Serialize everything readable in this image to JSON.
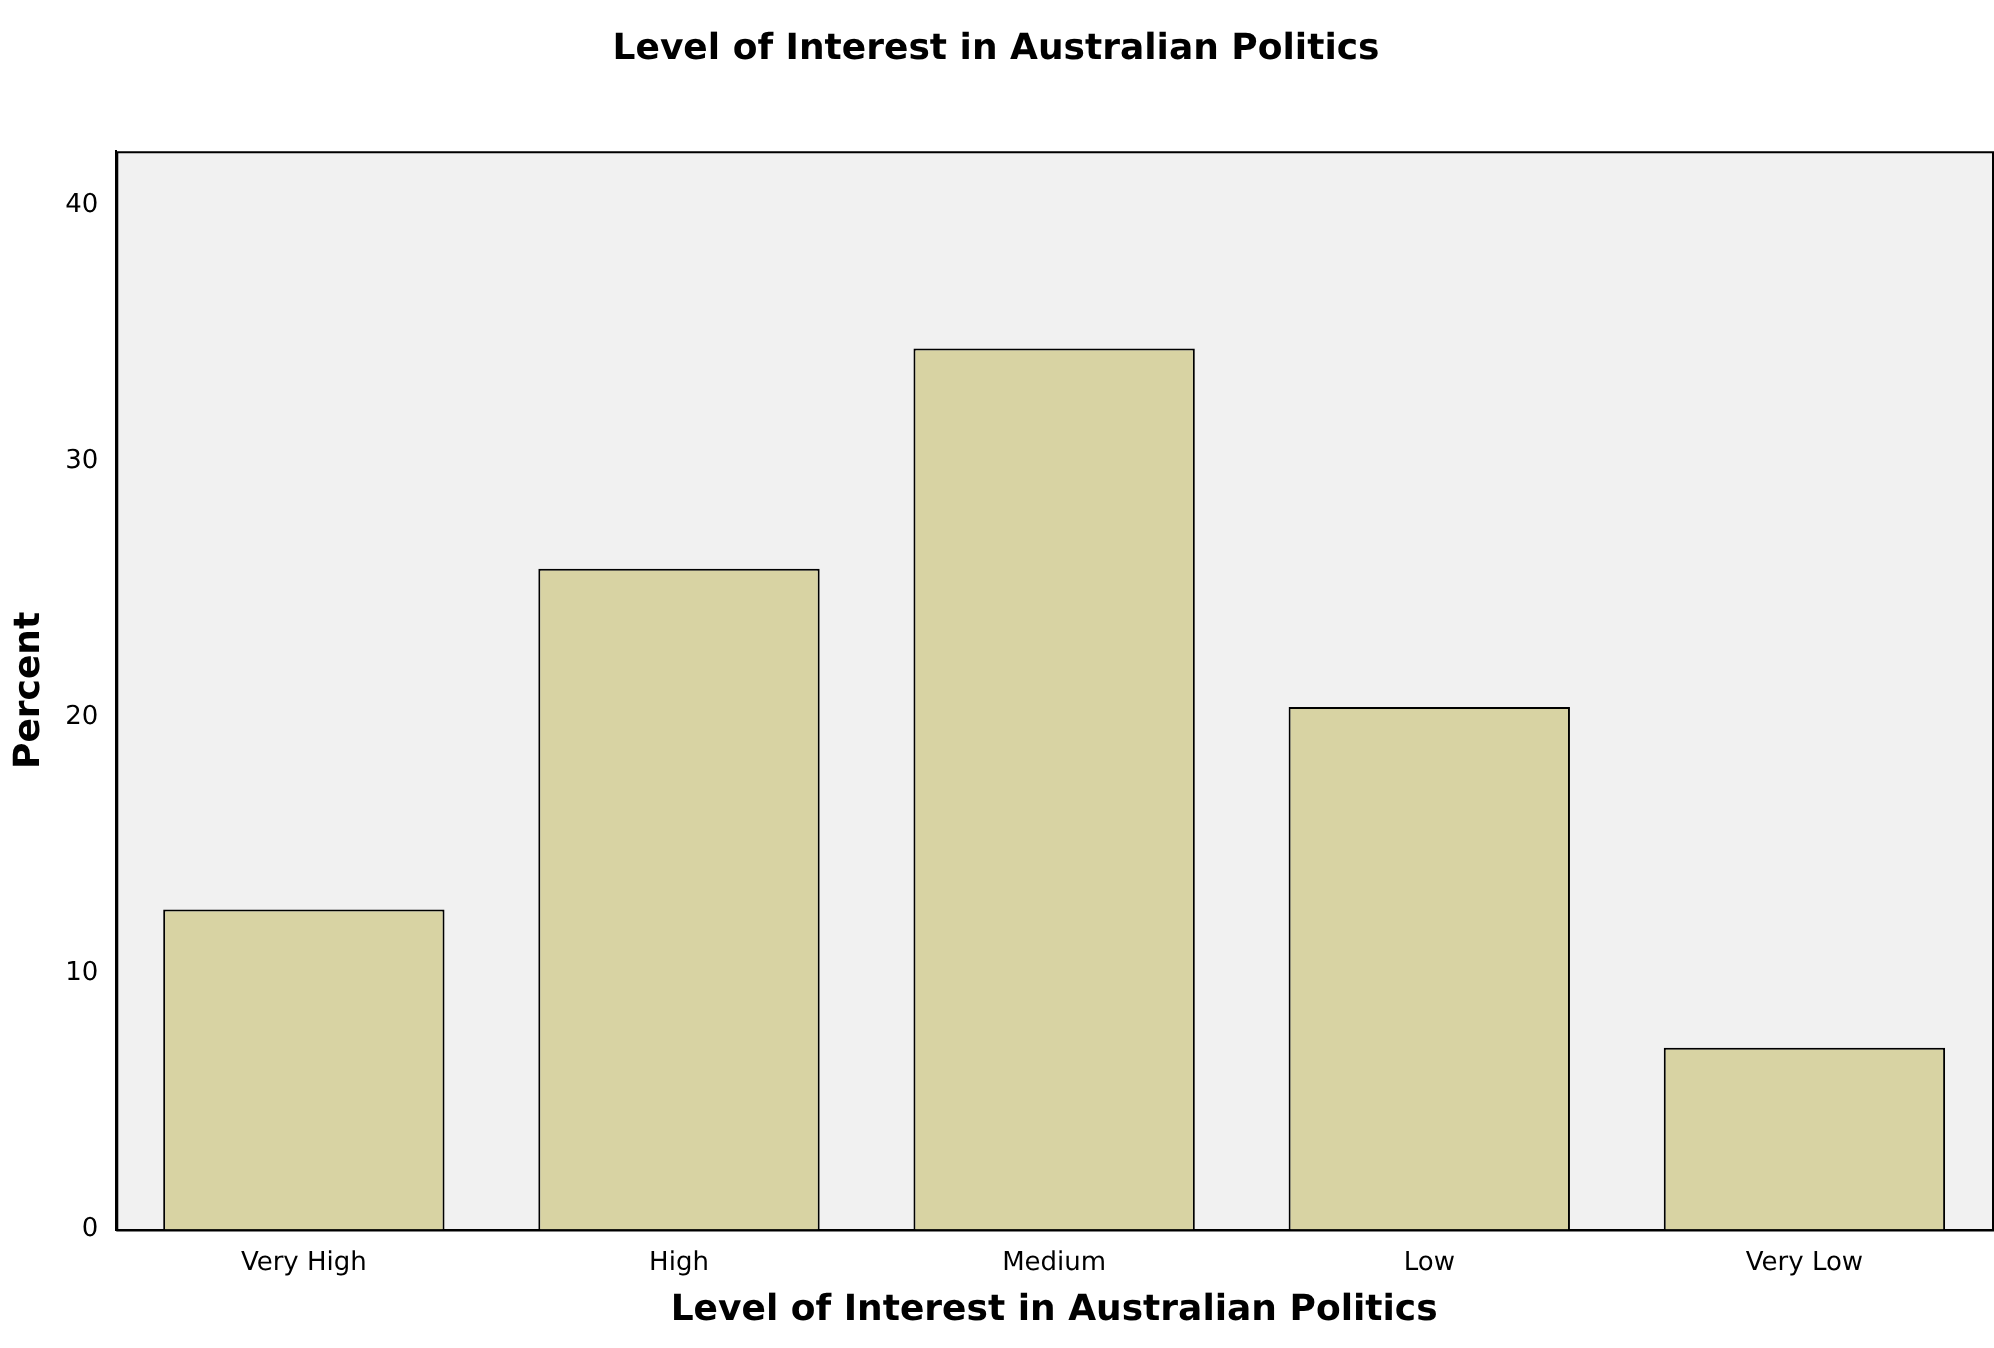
{
  "chart_data": {
    "type": "bar",
    "title": "Level of Interest in Australian Politics",
    "xlabel": "Level of Interest in Australian Politics",
    "ylabel": "Percent",
    "categories": [
      "Very High",
      "High",
      "Medium",
      "Low",
      "Very Low"
    ],
    "values": [
      12.5,
      25.8,
      34.4,
      20.4,
      7.1
    ],
    "color": "#d8d3a3",
    "ylim": [
      0,
      42.1
    ],
    "yticks": [
      0,
      10,
      20,
      30,
      40
    ],
    "grid": false,
    "legend": false
  }
}
